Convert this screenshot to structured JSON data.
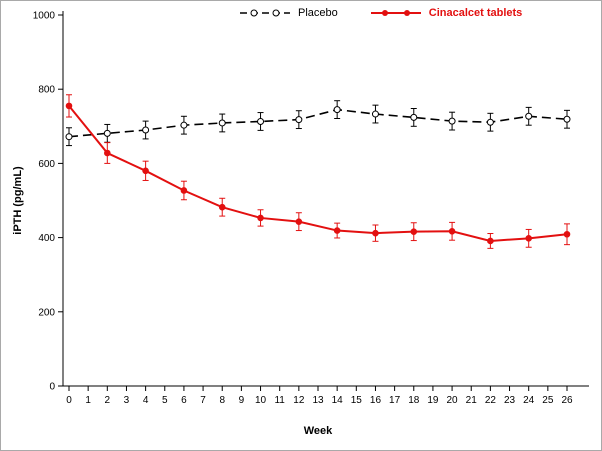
{
  "chart_data": {
    "type": "line",
    "title": "",
    "xlabel": "Week",
    "ylabel": "iPTH  (pg/mL)",
    "xlim": [
      0,
      26
    ],
    "ylim": [
      0,
      1000
    ],
    "yticks": [
      0,
      200,
      400,
      600,
      800,
      1000
    ],
    "xticks": [
      0,
      1,
      2,
      3,
      4,
      5,
      6,
      7,
      8,
      9,
      10,
      11,
      12,
      13,
      14,
      15,
      16,
      17,
      18,
      19,
      20,
      21,
      22,
      23,
      24,
      25,
      26
    ],
    "x": [
      0,
      2,
      4,
      6,
      8,
      10,
      12,
      14,
      16,
      18,
      20,
      22,
      24,
      26
    ],
    "grid": false,
    "legend_position": "top",
    "series": [
      {
        "name": "Placebo",
        "color": "#000000",
        "line_style": "dashed",
        "marker": "open-circle",
        "values": [
          672,
          681,
          690,
          703,
          709,
          713,
          718,
          745,
          733,
          724,
          714,
          711,
          727,
          719
        ],
        "errors": [
          24,
          24,
          24,
          24,
          24,
          24,
          24,
          24,
          24,
          24,
          24,
          24,
          24,
          24
        ]
      },
      {
        "name": "Cinacalcet tablets",
        "color": "#e31010",
        "line_style": "solid",
        "marker": "filled-circle",
        "values": [
          755,
          628,
          580,
          527,
          482,
          453,
          443,
          419,
          412,
          416,
          417,
          391,
          398,
          409
        ],
        "errors": [
          30,
          28,
          26,
          25,
          24,
          22,
          24,
          20,
          22,
          24,
          24,
          20,
          24,
          28
        ]
      }
    ]
  }
}
